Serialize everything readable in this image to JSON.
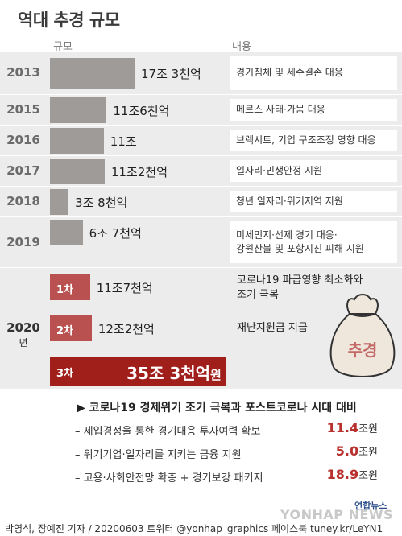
{
  "title": "역대 추경 규모",
  "columns": {
    "size": "규모",
    "content": "내용"
  },
  "colors": {
    "gray_bar": "#9e9b98",
    "red_bar": "#b8514f",
    "dark_red_bar": "#a01f1b",
    "band": "#ececec",
    "highlight_number": "#b8312f"
  },
  "chart_data": {
    "type": "bar",
    "orientation": "horizontal",
    "title": "역대 추경 규모",
    "value_unit": "조원",
    "categories": [
      "2013",
      "2015",
      "2016",
      "2017",
      "2018",
      "2019",
      "2020 1차",
      "2020 2차",
      "2020 3차"
    ],
    "values": [
      17.3,
      11.6,
      11.0,
      11.2,
      3.8,
      6.7,
      11.7,
      12.2,
      35.3
    ],
    "labels": [
      "17조 3천억",
      "11조6천억",
      "11조",
      "11조2천억",
      "3조 8천억",
      "6조 7천억",
      "11조7천억",
      "12조2천억",
      "35조 3천억원"
    ],
    "descriptions": [
      "경기침체 및 세수결손 대응",
      "메르스 사태·가뭄 대응",
      "브렉시트, 기업 구조조정 영향 대응",
      "일자리·민생안정 지원",
      "청년 일자리·위기지역 지원",
      "미세먼지·선제 경기 대응· 강원산불 및 포항지진 피해 지원",
      "코로나19 파급영향 최소화와 조기 극복",
      "재난지원금 지급",
      ""
    ]
  },
  "rows": [
    {
      "year": "2013",
      "label": "17조 3천억",
      "desc": [
        "경기침체 및 세수결손 대응"
      ]
    },
    {
      "year": "2015",
      "label": "11조6천억",
      "desc": [
        "메르스 사태·가뭄 대응"
      ]
    },
    {
      "year": "2016",
      "label": "11조",
      "desc": [
        "브렉시트, 기업 구조조정 영향 대응"
      ]
    },
    {
      "year": "2017",
      "label": "11조2천억",
      "desc": [
        "일자리·민생안정 지원"
      ]
    },
    {
      "year": "2018",
      "label": "3조 8천억",
      "desc": [
        "청년 일자리·위기지역 지원"
      ]
    },
    {
      "year": "2019",
      "label": "6조 7천억",
      "desc": [
        "미세먼지·선제 경기 대응·",
        "강원산불 및 포항지진 피해 지원"
      ]
    }
  ],
  "year2020": {
    "year": "2020",
    "unit": "년",
    "rounds": [
      {
        "name": "1차",
        "label": "11조7천억",
        "desc": [
          "코로나19 파급영향 최소화와",
          "조기 극복"
        ]
      },
      {
        "name": "2차",
        "label": "12조2천억",
        "desc": [
          "재난지원금 지급"
        ]
      }
    ],
    "third": {
      "name": "3차",
      "label_big": "35조 3천억",
      "label_unit": "원"
    },
    "bag_label": "추경"
  },
  "detail": {
    "heading": "▶ 코로나19 경제위기 조기 극복과 포스트코로나 시대 대비",
    "items": [
      {
        "text": "– 세입경정을 통한 경기대응 투자여력 확보",
        "value": "11.4",
        "unit": "조원"
      },
      {
        "text": "– 위기기업·일자리를 지키는 금융 지원",
        "value": "5.0",
        "unit": "조원"
      },
      {
        "text": "– 고용·사회안전망 확충 + 경기보강 패키지",
        "value": "18.9",
        "unit": "조원"
      }
    ]
  },
  "footer": "박영석, 장예진 기자 / 20200603 트위터 @yonhap_graphics  페이스북 tuney.kr/LeYN1",
  "logo": {
    "korean": "연합뉴스",
    "english": "YONHAP NEWS"
  }
}
